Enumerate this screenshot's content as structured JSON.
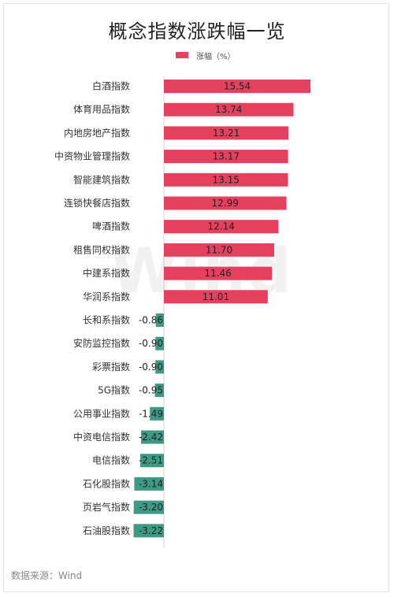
{
  "page": {
    "title": "概念指数涨跌幅一览",
    "source": "数据来源：Wind",
    "watermark": "Wind"
  },
  "colors": {
    "positive": "#e3415d",
    "negative": "#3f9a85"
  },
  "chart_data": {
    "type": "bar",
    "orientation": "horizontal",
    "title": "概念指数涨跌幅一览",
    "legend": {
      "position": "top-center",
      "entries": [
        "涨幅（%）"
      ]
    },
    "grid": false,
    "xlim": [
      -3.22,
      15.54
    ],
    "series": [
      {
        "name": "涨幅（%）",
        "categories": [
          "白酒指数",
          "体育用品指数",
          "内地房地产指数",
          "中资物业管理指数",
          "智能建筑指数",
          "连锁快餐店指数",
          "啤酒指数",
          "租售同权指数",
          "中建系指数",
          "华润系指数",
          "长和系指数",
          "安防监控指数",
          "彩票指数",
          "5G指数",
          "公用事业指数",
          "中资电信指数",
          "电信指数",
          "石化股指数",
          "页岩气指数",
          "石油股指数"
        ],
        "values": [
          15.54,
          13.74,
          13.21,
          13.17,
          13.15,
          12.99,
          12.14,
          11.7,
          11.46,
          11.01,
          -0.86,
          -0.9,
          -0.9,
          -0.95,
          -1.49,
          -2.42,
          -2.51,
          -3.14,
          -3.2,
          -3.22
        ],
        "value_labels": [
          "15.54",
          "13.74",
          "13.21",
          "13.17",
          "13.15",
          "12.99",
          "12.14",
          "11.70",
          "11.46",
          "11.01",
          "-0.86",
          "-0.90",
          "-0.90",
          "-0.95",
          "-1.49",
          "-2.42",
          "-2.51",
          "-3.14",
          "-3.20",
          "-3.22"
        ]
      }
    ]
  }
}
